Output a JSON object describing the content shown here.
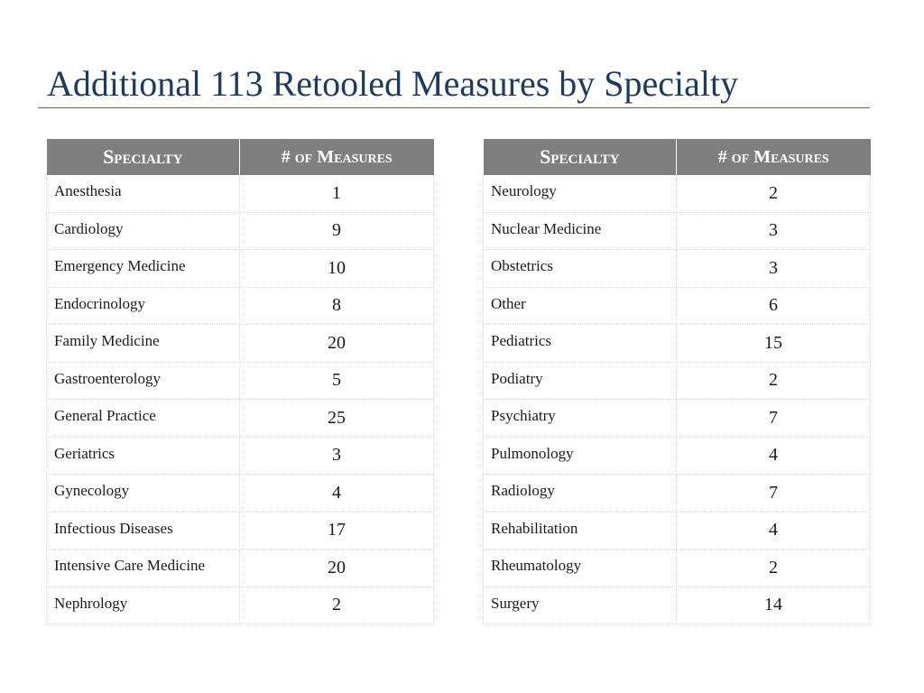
{
  "title": "Additional 113 Retooled Measures by Specialty",
  "colors": {
    "title": "#1f3a5f",
    "rule": "#c0392b",
    "header_bg": "#7f7f7f"
  },
  "tables": [
    {
      "headers": [
        "Specialty",
        "# of Measures"
      ],
      "rows": [
        {
          "specialty": "Anesthesia",
          "count": "1"
        },
        {
          "specialty": "Cardiology",
          "count": "9"
        },
        {
          "specialty": "Emergency Medicine",
          "count": "10"
        },
        {
          "specialty": "Endocrinology",
          "count": "8"
        },
        {
          "specialty": "Family Medicine",
          "count": "20"
        },
        {
          "specialty": "Gastroenterology",
          "count": "5"
        },
        {
          "specialty": "General Practice",
          "count": "25"
        },
        {
          "specialty": "Geriatrics",
          "count": "3"
        },
        {
          "specialty": "Gynecology",
          "count": "4"
        },
        {
          "specialty": "Infectious Diseases",
          "count": "17"
        },
        {
          "specialty": "Intensive Care Medicine",
          "count": "20"
        },
        {
          "specialty": "Nephrology",
          "count": "2"
        }
      ]
    },
    {
      "headers": [
        "Specialty",
        "# of Measures"
      ],
      "rows": [
        {
          "specialty": "Neurology",
          "count": "2"
        },
        {
          "specialty": "Nuclear Medicine",
          "count": "3"
        },
        {
          "specialty": "Obstetrics",
          "count": "3"
        },
        {
          "specialty": "Other",
          "count": "6"
        },
        {
          "specialty": "Pediatrics",
          "count": "15"
        },
        {
          "specialty": "Podiatry",
          "count": "2"
        },
        {
          "specialty": "Psychiatry",
          "count": "7"
        },
        {
          "specialty": "Pulmonology",
          "count": "4"
        },
        {
          "specialty": "Radiology",
          "count": "7"
        },
        {
          "specialty": "Rehabilitation",
          "count": "4"
        },
        {
          "specialty": "Rheumatology",
          "count": "2"
        },
        {
          "specialty": "Surgery",
          "count": "14"
        }
      ]
    }
  ]
}
